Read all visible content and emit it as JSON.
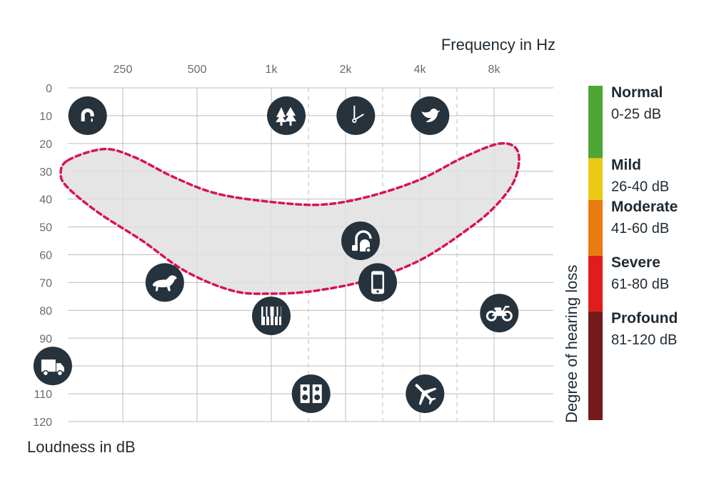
{
  "chart_data": {
    "type": "scatter",
    "title": "",
    "xlabel": "Frequency in Hz",
    "ylabel": "Loudness in dB",
    "x_ticks": [
      "250",
      "500",
      "1k",
      "2k",
      "4k",
      "8k"
    ],
    "x_ticks_hz": [
      250,
      500,
      1000,
      2000,
      4000,
      8000
    ],
    "x_scale": "log",
    "ylim": [
      0,
      120
    ],
    "y_ticks": [
      0,
      10,
      20,
      30,
      40,
      50,
      60,
      70,
      80,
      90,
      100,
      110,
      120
    ],
    "y_inverted": true,
    "grid": true,
    "legend_title": "Degree of hearing loss",
    "legend_position": "right",
    "severity": [
      {
        "name": "Normal",
        "range": "0-25 dB",
        "from": 0,
        "to": 25,
        "color": "#4ea734"
      },
      {
        "name": "Mild",
        "range": "26-40 dB",
        "from": 26,
        "to": 40,
        "color": "#ecc914"
      },
      {
        "name": "Moderate",
        "range": "41-60 dB",
        "from": 41,
        "to": 60,
        "color": "#ea7b11"
      },
      {
        "name": "Severe",
        "range": "61-80 dB",
        "from": 61,
        "to": 80,
        "color": "#e01c1c"
      },
      {
        "name": "Profound",
        "range": "81-120 dB",
        "from": 81,
        "to": 120,
        "color": "#751a1a"
      }
    ],
    "points": [
      {
        "icon": "faucet-drip-icon",
        "hz": 180,
        "db": 10
      },
      {
        "icon": "rustling-leaves-icon",
        "hz": 1150,
        "db": 10
      },
      {
        "icon": "clock-ticking-icon",
        "hz": 2200,
        "db": 10
      },
      {
        "icon": "bird-icon",
        "hz": 4400,
        "db": 10
      },
      {
        "icon": "vacuum-cleaner-icon",
        "hz": 2300,
        "db": 55
      },
      {
        "icon": "dog-bark-icon",
        "hz": 370,
        "db": 70
      },
      {
        "icon": "mobile-phone-icon",
        "hz": 2700,
        "db": 70
      },
      {
        "icon": "piano-icon",
        "hz": 1000,
        "db": 82
      },
      {
        "icon": "motorcycle-icon",
        "hz": 8400,
        "db": 81
      },
      {
        "icon": "truck-icon",
        "hz": 130,
        "db": 100
      },
      {
        "icon": "loudspeaker-icon",
        "hz": 1450,
        "db": 110
      },
      {
        "icon": "airplane-icon",
        "hz": 4200,
        "db": 110
      }
    ],
    "speech_banana": {
      "label": "",
      "outline_color": "#d6154f",
      "fill_color": "#e0e0e0",
      "boundary": [
        {
          "hz": 150,
          "db": 26
        },
        {
          "hz": 210,
          "db": 22
        },
        {
          "hz": 280,
          "db": 25
        },
        {
          "hz": 400,
          "db": 32
        },
        {
          "hz": 600,
          "db": 38
        },
        {
          "hz": 1000,
          "db": 41
        },
        {
          "hz": 1600,
          "db": 42
        },
        {
          "hz": 2500,
          "db": 39
        },
        {
          "hz": 4000,
          "db": 33
        },
        {
          "hz": 6000,
          "db": 25
        },
        {
          "hz": 8500,
          "db": 20
        },
        {
          "hz": 10000,
          "db": 23
        },
        {
          "hz": 9700,
          "db": 33
        },
        {
          "hz": 8000,
          "db": 43
        },
        {
          "hz": 6000,
          "db": 52
        },
        {
          "hz": 4000,
          "db": 62
        },
        {
          "hz": 2500,
          "db": 69
        },
        {
          "hz": 1500,
          "db": 73
        },
        {
          "hz": 1000,
          "db": 74
        },
        {
          "hz": 700,
          "db": 73
        },
        {
          "hz": 450,
          "db": 66
        },
        {
          "hz": 300,
          "db": 55
        },
        {
          "hz": 200,
          "db": 45
        },
        {
          "hz": 150,
          "db": 36
        },
        {
          "hz": 140,
          "db": 31
        }
      ]
    }
  },
  "theme": {
    "icon_fill": "#26323c",
    "icon_glyph": "#ffffff",
    "grid_color": "#bdbdbd"
  }
}
